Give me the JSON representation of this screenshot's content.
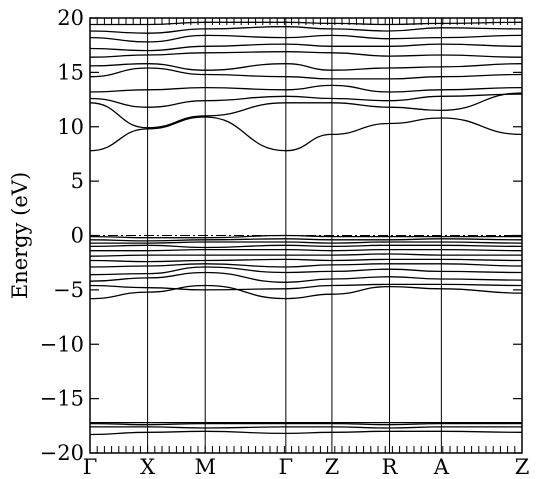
{
  "chart_data": {
    "type": "line",
    "xlabel": "",
    "ylabel": "Energy (eV)",
    "ylim": [
      -20,
      20
    ],
    "yticks": [
      20,
      15,
      10,
      5,
      0,
      -5,
      -10,
      -15,
      -20
    ],
    "ytick_labels": [
      "20",
      "15",
      "10",
      "5",
      "0",
      "−5",
      "−10",
      "−15",
      "−20"
    ],
    "kpath": [
      "Γ",
      "X",
      "M",
      "Γ",
      "Z",
      "R",
      "A",
      "Z"
    ],
    "kpath_positions": [
      0,
      1,
      2,
      3.4,
      4.2,
      5.2,
      6.1,
      7.5
    ],
    "fermi_level": 0,
    "grid": false,
    "legend": "none",
    "line_color": "#000000",
    "series": [
      {
        "values": [
          -18.3,
          -18.1,
          -18.0,
          -18.2,
          -18.1,
          -18.0,
          -18.0,
          -18.1
        ]
      },
      {
        "values": [
          -17.6,
          -17.6,
          -17.7,
          -17.6,
          -17.6,
          -17.7,
          -17.6,
          -17.6
        ]
      },
      {
        "values": [
          -17.3,
          -17.4,
          -17.3,
          -17.3,
          -17.3,
          -17.4,
          -17.3,
          -17.3
        ]
      },
      {
        "values": [
          -17.2,
          -17.2,
          -17.2,
          -17.2,
          -17.2,
          -17.2,
          -17.2,
          -17.2
        ]
      },
      {
        "values": [
          -5.8,
          -5.2,
          -4.6,
          -5.8,
          -5.4,
          -4.7,
          -4.9,
          -5.3
        ]
      },
      {
        "values": [
          -4.6,
          -4.8,
          -5.0,
          -4.9,
          -4.6,
          -4.5,
          -4.5,
          -4.6
        ]
      },
      {
        "values": [
          -4.2,
          -3.9,
          -3.4,
          -4.3,
          -4.0,
          -3.8,
          -4.0,
          -4.1
        ]
      },
      {
        "values": [
          -3.6,
          -3.5,
          -2.9,
          -3.4,
          -3.3,
          -3.1,
          -3.3,
          -3.4
        ]
      },
      {
        "values": [
          -2.9,
          -2.8,
          -2.6,
          -2.9,
          -2.7,
          -2.6,
          -2.6,
          -2.8
        ]
      },
      {
        "values": [
          -2.3,
          -2.4,
          -2.3,
          -2.2,
          -2.3,
          -2.2,
          -2.2,
          -2.3
        ]
      },
      {
        "values": [
          -1.9,
          -1.8,
          -1.8,
          -1.8,
          -1.8,
          -1.7,
          -1.8,
          -1.8
        ]
      },
      {
        "values": [
          -1.4,
          -1.4,
          -1.3,
          -1.3,
          -1.4,
          -1.3,
          -1.3,
          -1.4
        ]
      },
      {
        "values": [
          -1.0,
          -0.9,
          -1.1,
          -0.9,
          -1.0,
          -0.9,
          -0.9,
          -1.0
        ]
      },
      {
        "values": [
          -0.7,
          -0.7,
          -0.6,
          -0.6,
          -0.7,
          -0.6,
          -0.6,
          -0.7
        ]
      },
      {
        "values": [
          -0.4,
          -0.5,
          -0.4,
          -0.3,
          -0.4,
          -0.4,
          -0.3,
          -0.4
        ]
      },
      {
        "values": [
          -0.1,
          -0.2,
          -0.2,
          0.0,
          -0.1,
          -0.1,
          -0.1,
          -0.1
        ]
      },
      {
        "values": [
          7.8,
          9.8,
          10.9,
          7.8,
          9.3,
          10.3,
          10.8,
          9.3
        ]
      },
      {
        "values": [
          12.2,
          9.9,
          11.0,
          12.2,
          12.2,
          11.8,
          11.5,
          13.1
        ]
      },
      {
        "values": [
          12.6,
          11.8,
          12.4,
          12.8,
          12.6,
          12.4,
          12.8,
          13.0
        ]
      },
      {
        "values": [
          13.2,
          13.4,
          13.6,
          13.4,
          13.8,
          13.2,
          13.4,
          13.6
        ]
      },
      {
        "values": [
          14.6,
          15.4,
          14.8,
          14.6,
          14.4,
          14.4,
          14.6,
          14.8
        ]
      },
      {
        "values": [
          15.6,
          15.8,
          15.2,
          15.8,
          15.2,
          15.4,
          15.5,
          15.8
        ]
      },
      {
        "values": [
          16.4,
          16.6,
          16.8,
          16.9,
          16.8,
          16.5,
          16.6,
          16.4
        ]
      },
      {
        "values": [
          17.2,
          17.0,
          17.4,
          17.6,
          17.4,
          17.4,
          17.6,
          17.4
        ]
      },
      {
        "values": [
          18.2,
          17.8,
          18.4,
          18.2,
          18.4,
          18.1,
          18.2,
          18.4
        ]
      },
      {
        "values": [
          18.8,
          18.6,
          19.0,
          19.2,
          19.0,
          18.8,
          19.1,
          19.0
        ]
      },
      {
        "values": [
          19.4,
          19.4,
          19.6,
          19.6,
          19.5,
          19.4,
          19.5,
          19.6
        ]
      }
    ]
  }
}
